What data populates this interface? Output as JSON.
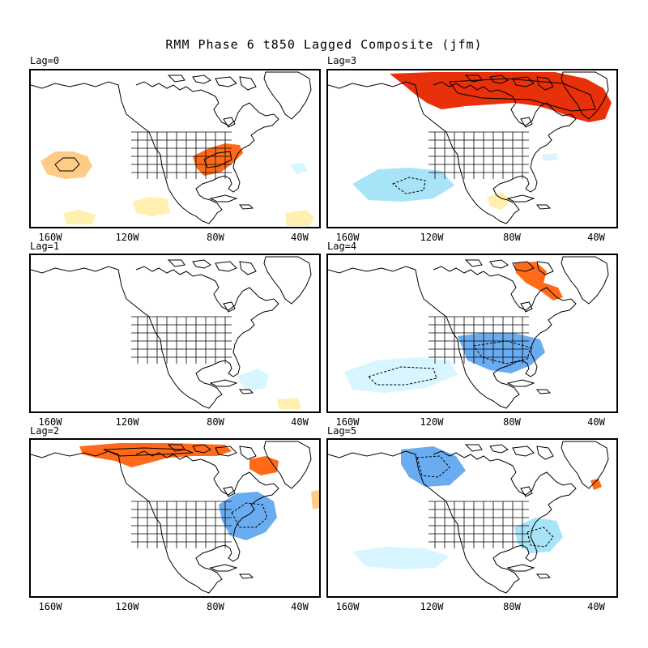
{
  "title": "RMM Phase 6 t850 Lagged Composite (jfm)",
  "lon_ticks": [
    "160W",
    "120W",
    "80W",
    "40W"
  ],
  "colors": {
    "warm_dark": "#e8300a",
    "warm": "#ff6a1a",
    "warm_mid": "#ff9a45",
    "warm_light": "#ffcc88",
    "warm_pale": "#fff0b0",
    "cold_pale": "#d8f6ff",
    "cold_light": "#a8e4f8",
    "cold": "#6aacf0",
    "cold_dark": "#4a8ee0",
    "land_outline": "#000000"
  },
  "panels": [
    {
      "label": "Lag=0",
      "anomalies": [
        {
          "sign": "warm",
          "level": 2,
          "region": "Pacific near 150W, 30N"
        },
        {
          "sign": "warm",
          "level": 3,
          "region": "Ohio Valley / Mid-Atlantic"
        },
        {
          "sign": "warm",
          "level": 1,
          "region": "Eastern Pacific near 10N"
        },
        {
          "sign": "warm",
          "level": 1,
          "region": "Tropical Atlantic near 40W"
        },
        {
          "sign": "cold",
          "level": 1,
          "region": "Western Atlantic near 40W"
        }
      ]
    },
    {
      "label": "Lag=1",
      "anomalies": [
        {
          "sign": "cold",
          "level": 1,
          "region": "Western Atlantic near 65W"
        },
        {
          "sign": "warm",
          "level": 1,
          "region": "Tropical Atlantic near 40W"
        }
      ]
    },
    {
      "label": "Lag=2",
      "anomalies": [
        {
          "sign": "warm",
          "level": 4,
          "region": "Northern Canada / Arctic"
        },
        {
          "sign": "warm",
          "level": 3,
          "region": "Labrador Sea"
        },
        {
          "sign": "cold",
          "level": 3,
          "region": "Northeast US / Western Atlantic"
        },
        {
          "sign": "warm",
          "level": 1,
          "region": "North Atlantic near 30W"
        }
      ]
    },
    {
      "label": "Lag=3",
      "anomalies": [
        {
          "sign": "warm",
          "level": 4,
          "region": "Canadian Arctic / Greenland"
        },
        {
          "sign": "cold",
          "level": 2,
          "region": "Eastern Pacific near 125W, 20N"
        },
        {
          "sign": "warm",
          "level": 1,
          "region": "Caribbean"
        },
        {
          "sign": "cold",
          "level": 1,
          "region": "Western Atlantic near 65W"
        }
      ]
    },
    {
      "label": "Lag=4",
      "anomalies": [
        {
          "sign": "warm",
          "level": 3,
          "region": "Hudson Strait / Baffin"
        },
        {
          "sign": "cold",
          "level": 3,
          "region": "Southeast US"
        },
        {
          "sign": "cold",
          "level": 1,
          "region": "Eastern Pacific subtropics"
        }
      ]
    },
    {
      "label": "Lag=5",
      "anomalies": [
        {
          "sign": "cold",
          "level": 3,
          "region": "Western Canada"
        },
        {
          "sign": "cold",
          "level": 2,
          "region": "Western Atlantic near 70W"
        },
        {
          "sign": "cold",
          "level": 1,
          "region": "Eastern Pacific subtropics"
        },
        {
          "sign": "warm",
          "level": 2,
          "region": "North Atlantic near 40W"
        }
      ]
    }
  ]
}
